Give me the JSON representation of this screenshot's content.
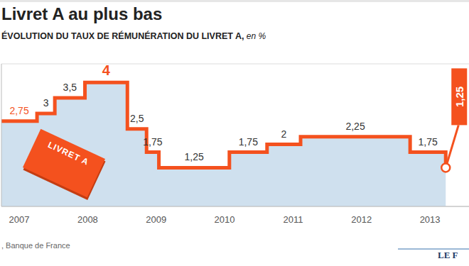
{
  "chart_data": {
    "type": "line",
    "title": "Livret A au plus bas",
    "subtitle": "ÉVOLUTION DU TAUX DE RÉMUNÉRATION DU LIVRET A, en %",
    "annotations": {
      "source": ", Banque de France",
      "logo": "LE F",
      "icon": "LIVRET A"
    },
    "x": [
      2006.74,
      2007.26,
      2007.52,
      2007.96,
      2008.58,
      2008.86,
      2009.04,
      2010.07,
      2010.62,
      2011.11,
      2012.71,
      2013.23
    ],
    "values": [
      2.75,
      3,
      3.5,
      4,
      2.5,
      1.75,
      1.25,
      1.75,
      2,
      2.25,
      1.75,
      1.25
    ],
    "value_labels": [
      "2,75",
      "3",
      "3,5",
      "4",
      "2,5",
      "1,75",
      "1,25",
      "1,75",
      "2",
      "2,25",
      "1,75",
      "1,25"
    ],
    "color": "#f4511e",
    "line_style": "step",
    "xlim": [
      2006.74,
      2013.57
    ],
    "xticks": [
      2007,
      2008,
      2009,
      2010,
      2011,
      2012,
      2013
    ],
    "ylim": [
      0,
      4.6
    ],
    "yticks": [
      1,
      2,
      3,
      4
    ],
    "grid": true,
    "tick_labels": "x",
    "data_labels": true
  }
}
